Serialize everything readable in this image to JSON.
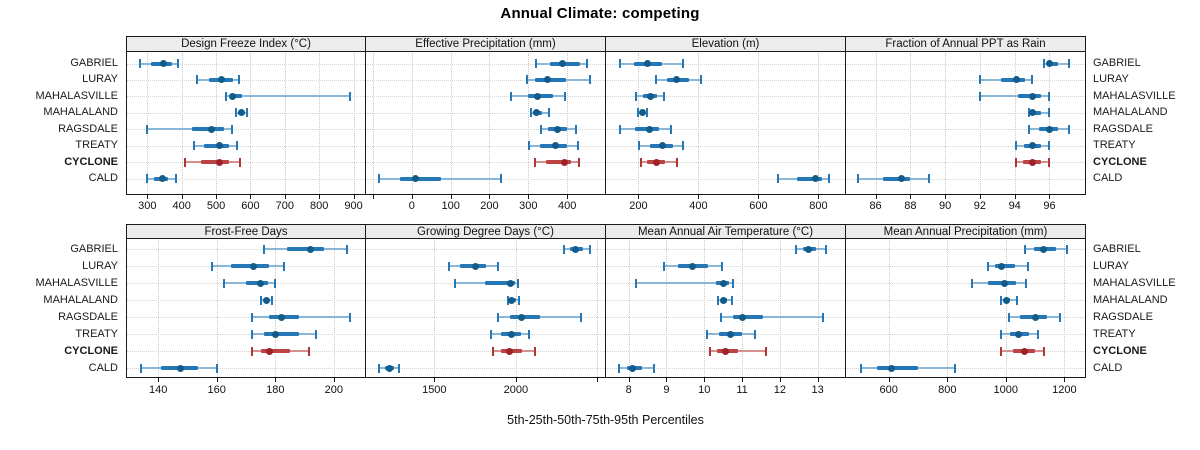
{
  "title": "Annual Climate: competing",
  "caption": "5th-25th-50th-75th-95th Percentiles",
  "sites": [
    "GABRIEL",
    "LURAY",
    "MAHALASVILLE",
    "MAHALALAND",
    "RAGSDALE",
    "TREATY",
    "CYCLONE",
    "CALD"
  ],
  "highlight_site": "CYCLONE",
  "colors": {
    "series_line": "#8ab6d8",
    "series_bar": "#2577b5",
    "series_cap": "#2577b5",
    "series_dot": "#135c89",
    "highlight_line": "#d79090",
    "highlight_bar": "#bc4343",
    "highlight_cap": "#b03636",
    "highlight_dot": "#9e2227",
    "grid": "#c9c9c9",
    "strip_bg": "#ececec",
    "border": "#1a1a1a"
  },
  "chart_data": [
    {
      "type": "dotplot_percentiles",
      "row": 0,
      "col": 0,
      "title": "Design Freeze Index (°C)",
      "xlim": [
        238,
        936
      ],
      "ticks": [
        {
          "v": 300,
          "label": "300"
        },
        {
          "v": 400,
          "label": "400"
        },
        {
          "v": 500,
          "label": "500"
        },
        {
          "v": 600,
          "label": "600"
        },
        {
          "v": 700,
          "label": "700"
        },
        {
          "v": 800,
          "label": "800"
        },
        {
          "v": 900,
          "label": "900"
        }
      ],
      "values": [
        [
          280,
          310,
          348,
          372,
          390
        ],
        [
          445,
          480,
          517,
          549,
          566
        ],
        [
          530,
          540,
          547,
          575,
          890
        ],
        [
          557,
          565,
          573,
          581,
          589
        ],
        [
          298,
          430,
          488,
          524,
          545
        ],
        [
          437,
          464,
          509,
          537,
          560
        ],
        [
          410,
          455,
          511,
          537,
          571
        ],
        [
          298,
          318,
          343,
          359,
          382
        ]
      ]
    },
    {
      "type": "dotplot_percentiles",
      "row": 0,
      "col": 1,
      "title": "Effective Precipitation (mm)",
      "xlim": [
        -118,
        500
      ],
      "ticks": [
        {
          "v": -100,
          "label": ""
        },
        {
          "v": 0,
          "label": "0"
        },
        {
          "v": 100,
          "label": "100"
        },
        {
          "v": 200,
          "label": "200"
        },
        {
          "v": 300,
          "label": "300"
        },
        {
          "v": 400,
          "label": "400"
        }
      ],
      "values": [
        [
          320,
          356,
          387,
          432,
          452
        ],
        [
          297,
          316,
          349,
          398,
          460
        ],
        [
          255,
          300,
          323,
          363,
          395
        ],
        [
          306,
          313,
          320,
          336,
          352
        ],
        [
          332,
          350,
          374,
          400,
          424
        ],
        [
          302,
          330,
          369,
          400,
          428
        ],
        [
          316,
          345,
          392,
          410,
          430
        ],
        [
          -85,
          -30,
          10,
          75,
          230
        ]
      ]
    },
    {
      "type": "dotplot_percentiles",
      "row": 0,
      "col": 2,
      "title": "Elevation (m)",
      "xlim": [
        92,
        892
      ],
      "ticks": [
        {
          "v": 200,
          "label": "200"
        },
        {
          "v": 400,
          "label": "400"
        },
        {
          "v": 600,
          "label": "600"
        },
        {
          "v": 800,
          "label": "800"
        }
      ],
      "values": [
        [
          137,
          185,
          229,
          280,
          349
        ],
        [
          257,
          295,
          327,
          370,
          408
        ],
        [
          192,
          215,
          241,
          262,
          286
        ],
        [
          200,
          208,
          215,
          221,
          227
        ],
        [
          137,
          190,
          237,
          270,
          308
        ],
        [
          202,
          240,
          281,
          315,
          350
        ],
        [
          208,
          230,
          261,
          290,
          327
        ],
        [
          666,
          730,
          790,
          812,
          835
        ]
      ]
    },
    {
      "type": "dotplot_percentiles",
      "row": 0,
      "col": 3,
      "title": "Fraction of Annual PPT as Rain",
      "xlim": [
        84.3,
        98.1
      ],
      "ticks": [
        {
          "v": 86,
          "label": "86"
        },
        {
          "v": 88,
          "label": "88"
        },
        {
          "v": 90,
          "label": "90"
        },
        {
          "v": 92,
          "label": "92"
        },
        {
          "v": 94,
          "label": "94"
        },
        {
          "v": 96,
          "label": "96"
        }
      ],
      "values": [
        [
          95.7,
          95.85,
          96.0,
          96.5,
          97.1
        ],
        [
          92.0,
          93.2,
          94.1,
          94.6,
          95.0
        ],
        [
          92.0,
          94.2,
          95.0,
          95.5,
          96.0
        ],
        [
          94.8,
          94.9,
          95.05,
          95.5,
          96.0
        ],
        [
          94.8,
          95.4,
          96.0,
          96.5,
          97.1
        ],
        [
          94.05,
          94.55,
          95.05,
          95.5,
          96.0
        ],
        [
          94.05,
          94.5,
          95.0,
          95.5,
          96.0
        ],
        [
          85.0,
          86.4,
          87.5,
          88.0,
          89.05
        ]
      ]
    },
    {
      "type": "dotplot_percentiles",
      "row": 1,
      "col": 0,
      "title": "Frost-Free Days",
      "xlim": [
        129,
        211
      ],
      "ticks": [
        {
          "v": 140,
          "label": "140"
        },
        {
          "v": 160,
          "label": "160"
        },
        {
          "v": 180,
          "label": "180"
        },
        {
          "v": 200,
          "label": "200"
        }
      ],
      "values": [
        [
          176,
          184,
          192,
          196.5,
          204.5
        ],
        [
          158.5,
          165,
          172.5,
          178,
          183
        ],
        [
          162.5,
          170,
          175,
          177.5,
          180
        ],
        [
          175,
          176,
          177,
          178,
          179
        ],
        [
          172,
          178,
          182,
          188,
          205.5
        ],
        [
          172,
          176,
          180,
          188,
          194
        ],
        [
          172,
          175,
          178,
          185,
          191.5
        ],
        [
          134,
          141,
          147.5,
          153.5,
          160
        ]
      ]
    },
    {
      "type": "dotplot_percentiles",
      "row": 1,
      "col": 1,
      "title": "Growing Degree Days (°C)",
      "xlim": [
        1081,
        2553
      ],
      "ticks": [
        {
          "v": 1500,
          "label": "1500"
        },
        {
          "v": 2000,
          "label": "2000"
        },
        {
          "v": 2500,
          "label": ""
        }
      ],
      "values": [
        [
          2296,
          2330,
          2366,
          2410,
          2456
        ],
        [
          1588,
          1660,
          1750,
          1820,
          1893
        ],
        [
          1629,
          1810,
          1969,
          1995,
          2016
        ],
        [
          1951,
          1962,
          1975,
          1998,
          2022
        ],
        [
          1890,
          1965,
          2034,
          2150,
          2401
        ],
        [
          1847,
          1910,
          1975,
          2030,
          2083
        ],
        [
          1861,
          1912,
          1959,
          2040,
          2120
        ],
        [
          1163,
          1195,
          1225,
          1255,
          1286
        ]
      ]
    },
    {
      "type": "dotplot_percentiles",
      "row": 1,
      "col": 2,
      "title": "Mean Annual Air Temperature (°C)",
      "xlim": [
        7.4,
        13.75
      ],
      "ticks": [
        {
          "v": 8,
          "label": "8"
        },
        {
          "v": 9,
          "label": "9"
        },
        {
          "v": 10,
          "label": "10"
        },
        {
          "v": 11,
          "label": "11"
        },
        {
          "v": 12,
          "label": "12"
        },
        {
          "v": 13,
          "label": "13"
        }
      ],
      "values": [
        [
          12.43,
          12.6,
          12.75,
          12.95,
          13.23
        ],
        [
          8.93,
          9.3,
          9.7,
          10.1,
          10.47
        ],
        [
          8.2,
          10.3,
          10.5,
          10.65,
          10.76
        ],
        [
          10.36,
          10.43,
          10.5,
          10.6,
          10.73
        ],
        [
          10.45,
          10.75,
          11.0,
          11.55,
          13.13
        ],
        [
          10.06,
          10.4,
          10.7,
          11.0,
          11.33
        ],
        [
          10.15,
          10.35,
          10.55,
          10.9,
          11.63
        ],
        [
          7.75,
          7.95,
          8.1,
          8.35,
          8.67
        ]
      ]
    },
    {
      "type": "dotplot_percentiles",
      "row": 1,
      "col": 3,
      "title": "Mean Annual Precipitation (mm)",
      "xlim": [
        454,
        1274
      ],
      "ticks": [
        {
          "v": 600,
          "label": "600"
        },
        {
          "v": 800,
          "label": "800"
        },
        {
          "v": 1000,
          "label": "1000"
        },
        {
          "v": 1200,
          "label": "1200"
        }
      ],
      "values": [
        [
          1065,
          1095,
          1130,
          1170,
          1210
        ],
        [
          940,
          962,
          985,
          1030,
          1075
        ],
        [
          885,
          940,
          995,
          1035,
          1070
        ],
        [
          985,
          993,
          1003,
          1015,
          1038
        ],
        [
          1010,
          1050,
          1100,
          1140,
          1185
        ],
        [
          985,
          1015,
          1045,
          1080,
          1110
        ],
        [
          985,
          1025,
          1065,
          1100,
          1130
        ],
        [
          505,
          560,
          610,
          700,
          825
        ]
      ]
    }
  ]
}
